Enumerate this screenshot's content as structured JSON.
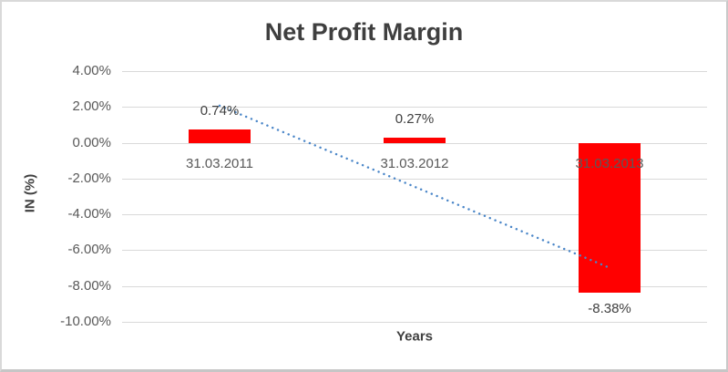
{
  "chart": {
    "title": "Net Profit Margin",
    "y_axis_title": "IN (%)",
    "x_axis_title": "Years"
  },
  "chart_data": {
    "type": "bar",
    "title": "Net Profit Margin",
    "xlabel": "Years",
    "ylabel": "IN (%)",
    "categories": [
      "31.03.2011",
      "31.03.2012",
      "31.03.2013"
    ],
    "values": [
      0.74,
      0.27,
      -8.38
    ],
    "data_labels": [
      "0.74%",
      "0.27%",
      "-8.38%"
    ],
    "ylim": [
      -10,
      4
    ],
    "yticks": [
      4,
      2,
      0,
      -2,
      -4,
      -6,
      -8,
      -10
    ],
    "ytick_labels": [
      "4.00%",
      "2.00%",
      "0.00%",
      "-2.00%",
      "-4.00%",
      "-6.00%",
      "-8.00%",
      "-10.00%"
    ],
    "grid": true,
    "legend": "none",
    "bar_color": "#ff0000",
    "trendline": {
      "style": "dotted",
      "color": "#4a86c8",
      "start_value": 2.07,
      "end_value": -6.98
    }
  },
  "colors": {
    "bar": "#ff0000",
    "trendline": "#4a86c8",
    "gridline": "#d9d9d9",
    "tick_text": "#595959",
    "label_text": "#404040",
    "title_text": "#3f3f3f",
    "frame_border": "#c9c9c9"
  }
}
